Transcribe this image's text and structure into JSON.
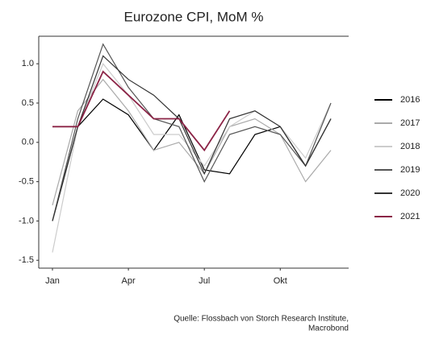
{
  "chart_data": {
    "type": "line",
    "title": "Eurozone CPI, MoM %",
    "categories": [
      "Jan",
      null,
      null,
      "Apr",
      null,
      null,
      "Jul",
      null,
      null,
      "Okt",
      null,
      null
    ],
    "series": [
      {
        "name": "2016",
        "color": "#000000",
        "values": [
          -1.0,
          0.2,
          0.55,
          0.35,
          -0.1,
          0.35,
          -0.35,
          -0.4,
          0.1,
          0.2,
          -0.3,
          0.3
        ]
      },
      {
        "name": "2017",
        "color": "#aaaaaa",
        "values": [
          -0.8,
          0.4,
          0.8,
          0.4,
          -0.1,
          0.0,
          -0.4,
          0.2,
          0.3,
          0.1,
          -0.5,
          -0.1
        ]
      },
      {
        "name": "2018",
        "color": "#cccccc",
        "values": [
          -1.4,
          0.2,
          1.0,
          0.6,
          0.1,
          0.1,
          -0.3,
          0.2,
          0.4,
          0.2,
          -0.2,
          0.5
        ]
      },
      {
        "name": "2019",
        "color": "#555555",
        "values": [
          -1.0,
          0.3,
          1.25,
          0.7,
          0.3,
          0.2,
          -0.5,
          0.1,
          0.2,
          0.1,
          -0.3,
          0.5
        ]
      },
      {
        "name": "2020",
        "color": "#333333",
        "values": [
          -1.0,
          0.2,
          1.1,
          0.8,
          0.6,
          0.3,
          -0.4,
          0.3,
          0.4,
          0.2,
          -0.3,
          0.3
        ]
      },
      {
        "name": "2021",
        "color": "#8b2346",
        "values": [
          0.2,
          0.2,
          0.9,
          0.6,
          0.3,
          0.3,
          -0.1,
          0.4,
          null,
          null,
          null,
          null
        ]
      }
    ],
    "ylim": [
      -1.6,
      1.35
    ],
    "yticks": [
      {
        "value": 1,
        "label": "1.0"
      },
      0.5,
      {
        "value": 0,
        "label": "0.0"
      },
      -0.5,
      {
        "value": -1,
        "label": "-1.0"
      },
      -1.5
    ],
    "legend": "right",
    "source": [
      "Quelle: Flossbach von Storch Research Institute,",
      "Macrobond"
    ]
  }
}
